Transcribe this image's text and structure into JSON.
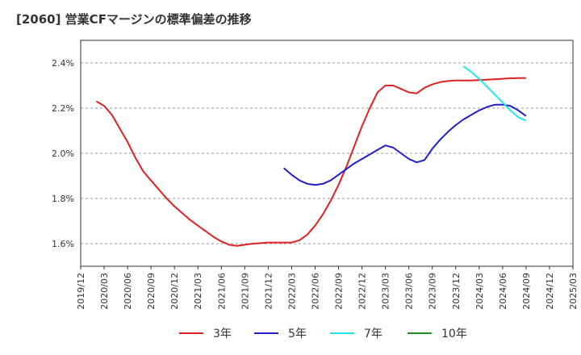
{
  "title": "[2060]  営業CFマージンの標準偏差の推移",
  "chart_data": {
    "type": "line",
    "title": "[2060]  営業CFマージンの標準偏差の推移",
    "xlabel": "",
    "ylabel": "",
    "x_ticks": [
      "2019/12",
      "2020/03",
      "2020/06",
      "2020/09",
      "2020/12",
      "2021/03",
      "2021/06",
      "2021/09",
      "2021/12",
      "2022/03",
      "2022/06",
      "2022/09",
      "2022/12",
      "2023/03",
      "2023/06",
      "2023/09",
      "2023/12",
      "2024/03",
      "2024/06",
      "2024/09",
      "2024/12",
      "2025/03"
    ],
    "y_ticks": [
      "1.6%",
      "1.8%",
      "2.0%",
      "2.2%",
      "2.4%"
    ],
    "y_tick_values": [
      1.6,
      1.8,
      2.0,
      2.2,
      2.4
    ],
    "ylim": [
      1.5,
      2.5
    ],
    "grid": "horizontal dashed",
    "legend_position": "bottom",
    "series": [
      {
        "name": "3年",
        "color": "#dd2222",
        "points": [
          [
            "2020/02",
            2.23
          ],
          [
            "2020/03",
            2.21
          ],
          [
            "2020/04",
            2.17
          ],
          [
            "2020/05",
            2.11
          ],
          [
            "2020/06",
            2.05
          ],
          [
            "2020/07",
            1.98
          ],
          [
            "2020/08",
            1.92
          ],
          [
            "2020/09",
            1.88
          ],
          [
            "2020/10",
            1.84
          ],
          [
            "2020/11",
            1.8
          ],
          [
            "2020/12",
            1.765
          ],
          [
            "2021/01",
            1.735
          ],
          [
            "2021/02",
            1.705
          ],
          [
            "2021/03",
            1.68
          ],
          [
            "2021/04",
            1.655
          ],
          [
            "2021/05",
            1.63
          ],
          [
            "2021/06",
            1.61
          ],
          [
            "2021/07",
            1.595
          ],
          [
            "2021/08",
            1.59
          ],
          [
            "2021/09",
            1.595
          ],
          [
            "2021/10",
            1.6
          ],
          [
            "2021/11",
            1.602
          ],
          [
            "2021/12",
            1.605
          ],
          [
            "2022/01",
            1.605
          ],
          [
            "2022/02",
            1.605
          ],
          [
            "2022/03",
            1.605
          ],
          [
            "2022/04",
            1.615
          ],
          [
            "2022/05",
            1.64
          ],
          [
            "2022/06",
            1.68
          ],
          [
            "2022/07",
            1.73
          ],
          [
            "2022/08",
            1.79
          ],
          [
            "2022/09",
            1.86
          ],
          [
            "2022/10",
            1.94
          ],
          [
            "2022/11",
            2.03
          ],
          [
            "2022/12",
            2.12
          ],
          [
            "2023/01",
            2.2
          ],
          [
            "2023/02",
            2.27
          ],
          [
            "2023/03",
            2.3
          ],
          [
            "2023/04",
            2.3
          ],
          [
            "2023/05",
            2.285
          ],
          [
            "2023/06",
            2.27
          ],
          [
            "2023/07",
            2.265
          ],
          [
            "2023/08",
            2.29
          ],
          [
            "2023/09",
            2.305
          ],
          [
            "2023/10",
            2.315
          ],
          [
            "2023/11",
            2.32
          ],
          [
            "2023/12",
            2.322
          ],
          [
            "2024/01",
            2.322
          ],
          [
            "2024/02",
            2.322
          ],
          [
            "2024/03",
            2.324
          ],
          [
            "2024/04",
            2.326
          ],
          [
            "2024/05",
            2.328
          ],
          [
            "2024/06",
            2.33
          ],
          [
            "2024/07",
            2.332
          ],
          [
            "2024/08",
            2.333
          ],
          [
            "2024/09",
            2.333
          ]
        ]
      },
      {
        "name": "5年",
        "color": "#1f1fcc",
        "points": [
          [
            "2022/02",
            1.935
          ],
          [
            "2022/03",
            1.905
          ],
          [
            "2022/04",
            1.88
          ],
          [
            "2022/05",
            1.865
          ],
          [
            "2022/06",
            1.86
          ],
          [
            "2022/07",
            1.865
          ],
          [
            "2022/08",
            1.88
          ],
          [
            "2022/09",
            1.905
          ],
          [
            "2022/10",
            1.93
          ],
          [
            "2022/11",
            1.955
          ],
          [
            "2022/12",
            1.975
          ],
          [
            "2023/01",
            1.995
          ],
          [
            "2023/02",
            2.015
          ],
          [
            "2023/03",
            2.035
          ],
          [
            "2023/04",
            2.025
          ],
          [
            "2023/05",
            2.0
          ],
          [
            "2023/06",
            1.975
          ],
          [
            "2023/07",
            1.96
          ],
          [
            "2023/08",
            1.97
          ],
          [
            "2023/09",
            2.02
          ],
          [
            "2023/10",
            2.06
          ],
          [
            "2023/11",
            2.095
          ],
          [
            "2023/12",
            2.125
          ],
          [
            "2024/01",
            2.15
          ],
          [
            "2024/02",
            2.17
          ],
          [
            "2024/03",
            2.19
          ],
          [
            "2024/04",
            2.205
          ],
          [
            "2024/05",
            2.215
          ],
          [
            "2024/06",
            2.215
          ],
          [
            "2024/07",
            2.21
          ],
          [
            "2024/08",
            2.19
          ],
          [
            "2024/09",
            2.165
          ]
        ]
      },
      {
        "name": "7年",
        "color": "#22e5ee",
        "points": [
          [
            "2024/01",
            2.385
          ],
          [
            "2024/02",
            2.36
          ],
          [
            "2024/03",
            2.33
          ],
          [
            "2024/04",
            2.295
          ],
          [
            "2024/05",
            2.26
          ],
          [
            "2024/06",
            2.225
          ],
          [
            "2024/07",
            2.19
          ],
          [
            "2024/08",
            2.16
          ],
          [
            "2024/09",
            2.145
          ]
        ]
      },
      {
        "name": "10年",
        "color": "#228b22",
        "points": []
      }
    ]
  }
}
